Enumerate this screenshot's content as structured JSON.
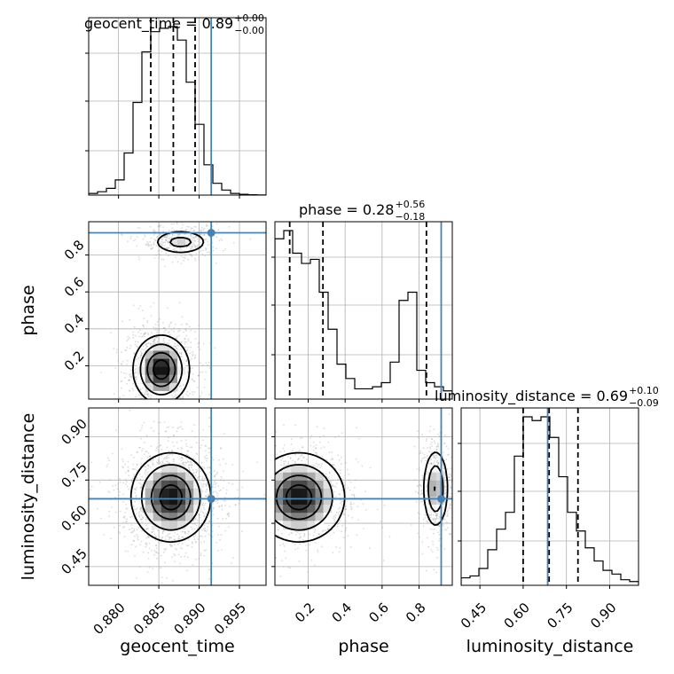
{
  "chart_data": {
    "type": "corner",
    "parameters": [
      "geocent_time",
      "phase",
      "luminosity_distance"
    ],
    "truths": {
      "geocent_time": 0.8915,
      "phase": 0.92,
      "luminosity_distance": 0.685
    },
    "ranges": {
      "geocent_time": [
        0.8763,
        0.8983
      ],
      "phase": [
        0.02,
        0.98
      ],
      "luminosity_distance": [
        0.385,
        1.0
      ]
    },
    "titles": [
      {
        "param": "geocent_time",
        "median": "0.89",
        "plus": "+0.00",
        "minus": "−0.00"
      },
      {
        "param": "phase",
        "median": "0.28",
        "plus": "+0.56",
        "minus": "−0.18"
      },
      {
        "param": "luminosity_distance",
        "median": "0.69",
        "plus": "+0.10",
        "minus": "−0.09"
      }
    ],
    "axis_labels": {
      "geocent_time": "geocent_time",
      "phase": "phase",
      "luminosity_distance": "luminosity_distance"
    },
    "ticks": {
      "geocent_time": [
        0.88,
        0.885,
        0.89,
        0.895
      ],
      "phase": [
        0.2,
        0.4,
        0.6,
        0.8
      ],
      "luminosity_distance": [
        0.45,
        0.6,
        0.75,
        0.9
      ]
    },
    "tick_labels": {
      "geocent_time": [
        "0.880",
        "0.885",
        "0.890",
        "0.895"
      ],
      "phase": [
        "0.2",
        "0.4",
        "0.6",
        "0.8"
      ],
      "luminosity_distance": [
        "0.45",
        "0.60",
        "0.75",
        "0.90"
      ]
    },
    "histograms": {
      "geocent_time": {
        "edges_start": 0.8763,
        "bin_width": 0.0011,
        "counts": [
          0.01,
          0.02,
          0.04,
          0.09,
          0.25,
          0.55,
          0.85,
          0.97,
          0.99,
          1.0,
          0.92,
          0.67,
          0.42,
          0.18,
          0.07,
          0.03,
          0.01,
          0.005,
          0.002,
          0.001
        ],
        "quantiles": [
          0.884,
          0.8868,
          0.8895
        ]
      },
      "phase": {
        "edges_start": 0.02,
        "bin_width": 0.048,
        "counts": [
          0.78,
          0.82,
          0.71,
          0.66,
          0.68,
          0.52,
          0.34,
          0.17,
          0.1,
          0.05,
          0.05,
          0.06,
          0.08,
          0.18,
          0.48,
          0.52,
          0.14,
          0.08,
          0.06,
          0.04
        ],
        "quantiles": [
          0.1,
          0.28,
          0.84
        ]
      },
      "luminosity_distance": {
        "edges_start": 0.385,
        "bin_width": 0.03075,
        "counts": [
          0.04,
          0.05,
          0.09,
          0.19,
          0.3,
          0.39,
          0.69,
          0.9,
          0.88,
          0.9,
          0.79,
          0.58,
          0.39,
          0.29,
          0.2,
          0.13,
          0.08,
          0.06,
          0.03,
          0.02
        ],
        "quantiles": [
          0.6,
          0.69,
          0.79
        ]
      }
    },
    "density_modes": {
      "phase_vs_geocent_time": [
        {
          "x": 0.8853,
          "y": 0.18,
          "sx": 0.0017,
          "sy": 0.09,
          "w": 0.85
        },
        {
          "x": 0.8877,
          "y": 0.87,
          "sx": 0.0018,
          "sy": 0.035,
          "w": 0.35
        }
      ],
      "luminosity_distance_vs_geocent_time": [
        {
          "x": 0.8865,
          "y": 0.69,
          "sx": 0.0024,
          "sy": 0.075,
          "w": 1.0
        }
      ],
      "luminosity_distance_vs_phase": [
        {
          "x": 0.15,
          "y": 0.69,
          "sx": 0.12,
          "sy": 0.075,
          "w": 0.9
        },
        {
          "x": 0.89,
          "y": 0.72,
          "sx": 0.035,
          "sy": 0.07,
          "w": 0.55
        }
      ]
    }
  }
}
